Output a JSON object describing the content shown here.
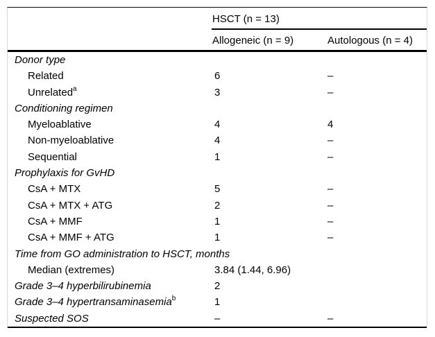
{
  "colors": {
    "text": "#000000",
    "rule": "#000000",
    "frame_border": "#d9d9d9",
    "background": "#ffffff"
  },
  "table": {
    "group_header": "HSCT (n = 13)",
    "columns": [
      "Allogeneic (n = 9)",
      "Autologous (n = 4)"
    ],
    "rows": [
      {
        "type": "section",
        "label": "Donor type",
        "sup": "",
        "c1": "",
        "c2": ""
      },
      {
        "type": "item",
        "label": "Related",
        "sup": "",
        "c1": "6",
        "c2": "–"
      },
      {
        "type": "item",
        "label": "Unrelated",
        "sup": "a",
        "c1": "3",
        "c2": "–"
      },
      {
        "type": "section",
        "label": "Conditioning regimen",
        "sup": "",
        "c1": "",
        "c2": ""
      },
      {
        "type": "item",
        "label": "Myeloablative",
        "sup": "",
        "c1": "4",
        "c2": "4"
      },
      {
        "type": "item",
        "label": "Non-myeloablative",
        "sup": "",
        "c1": "4",
        "c2": "–"
      },
      {
        "type": "item",
        "label": "Sequential",
        "sup": "",
        "c1": "1",
        "c2": "–"
      },
      {
        "type": "section",
        "label": "Prophylaxis for GvHD",
        "sup": "",
        "c1": "",
        "c2": ""
      },
      {
        "type": "item",
        "label": "CsA + MTX",
        "sup": "",
        "c1": "5",
        "c2": "–"
      },
      {
        "type": "item",
        "label": "CsA + MTX + ATG",
        "sup": "",
        "c1": "2",
        "c2": "–"
      },
      {
        "type": "item",
        "label": "CsA + MMF",
        "sup": "",
        "c1": "1",
        "c2": "–"
      },
      {
        "type": "item",
        "label": "CsA + MMF + ATG",
        "sup": "",
        "c1": "1",
        "c2": "–"
      },
      {
        "type": "section",
        "label": "Time from GO administration to HSCT, months",
        "sup": "",
        "c1": "",
        "c2": ""
      },
      {
        "type": "item",
        "label": "Median (extremes)",
        "sup": "",
        "c1": "3.84 (1.44, 6.96)",
        "c2": ""
      },
      {
        "type": "section",
        "label": "Grade 3–4 hyperbilirubinemia",
        "sup": "",
        "c1": "2",
        "c2": ""
      },
      {
        "type": "section",
        "label": "Grade 3–4 hypertransaminasemia",
        "sup": "b",
        "c1": "1",
        "c2": ""
      },
      {
        "type": "section",
        "label": "Suspected SOS",
        "sup": "",
        "c1": "–",
        "c2": "–"
      }
    ]
  }
}
